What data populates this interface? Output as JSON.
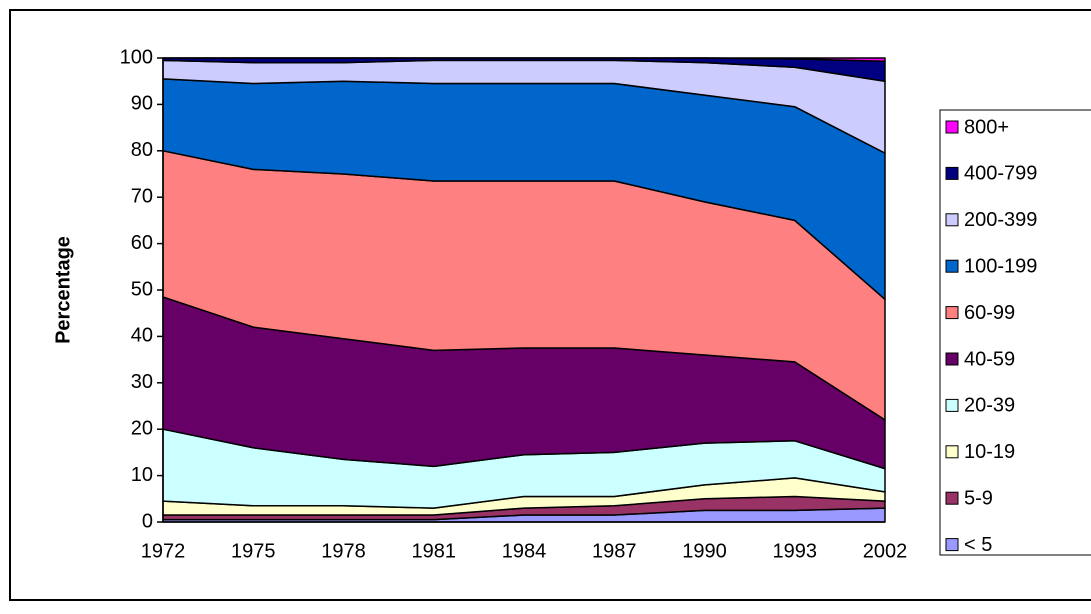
{
  "chart_data": {
    "type": "stacked-area",
    "y_label": "Percentage",
    "categories": [
      "1972",
      "1975",
      "1978",
      "1981",
      "1984",
      "1987",
      "1990",
      "1993",
      "2002"
    ],
    "ylim": [
      0,
      100
    ],
    "yticks": [
      0,
      10,
      20,
      30,
      40,
      50,
      60,
      70,
      80,
      90,
      100
    ],
    "legend": "right",
    "series": [
      {
        "name": "< 5",
        "color": "#9999ff",
        "values": [
          0.5,
          0.5,
          0.5,
          0.5,
          1.5,
          1.5,
          2.5,
          2.5,
          3
        ]
      },
      {
        "name": "5-9",
        "color": "#993366",
        "values": [
          1,
          1,
          1,
          1,
          1.5,
          2,
          2.5,
          3,
          1.5
        ]
      },
      {
        "name": "10-19",
        "color": "#ffffcc",
        "values": [
          3,
          2,
          2,
          1.5,
          2.5,
          2,
          3,
          4,
          2
        ]
      },
      {
        "name": "20-39",
        "color": "#ccffff",
        "values": [
          15.5,
          12.5,
          10,
          9,
          9,
          9.5,
          9,
          8,
          5
        ]
      },
      {
        "name": "40-59",
        "color": "#660066",
        "values": [
          28.5,
          26,
          26,
          25,
          23,
          22.5,
          19,
          17,
          10.5
        ]
      },
      {
        "name": "60-99",
        "color": "#ff8080",
        "values": [
          31.5,
          34,
          35.5,
          36.5,
          36,
          36,
          33,
          30.5,
          26
        ]
      },
      {
        "name": "100-199",
        "color": "#0066cc",
        "values": [
          15.5,
          18.5,
          20,
          21,
          21,
          21,
          23,
          24.5,
          31.5
        ]
      },
      {
        "name": "200-399",
        "color": "#ccccff",
        "values": [
          4,
          4.5,
          4,
          5,
          5,
          5,
          7,
          8.5,
          15.5
        ]
      },
      {
        "name": "400-799",
        "color": "#000080",
        "values": [
          0.5,
          1,
          1,
          0.5,
          0.5,
          0.5,
          1,
          1.8,
          4.3
        ]
      },
      {
        "name": "800+",
        "color": "#ff00ff",
        "values": [
          0,
          0,
          0,
          0,
          0,
          0,
          0,
          0.2,
          0.7
        ]
      }
    ]
  }
}
